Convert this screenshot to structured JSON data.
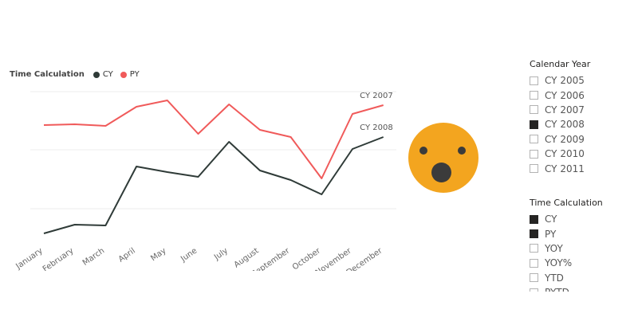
{
  "legend": {
    "title": "Time Calculation",
    "items": [
      {
        "label": "CY",
        "color": "#2f3b38"
      },
      {
        "label": "PY",
        "color": "#f05a5a"
      }
    ]
  },
  "chart_data": {
    "type": "line",
    "categories": [
      "January",
      "February",
      "March",
      "April",
      "May",
      "June",
      "July",
      "August",
      "September",
      "October",
      "November",
      "December"
    ],
    "series": [
      {
        "name": "CY",
        "end_label": "CY 2008",
        "color": "#2f3b38",
        "values": [
          15,
          26,
          25,
          99,
          92,
          86,
          130,
          94,
          82,
          64,
          121,
          136
        ]
      },
      {
        "name": "PY",
        "end_label": "CY 2007",
        "color": "#f05a5a",
        "values": [
          151,
          152,
          150,
          174,
          182,
          140,
          177,
          145,
          136,
          84,
          165,
          176
        ]
      }
    ],
    "ylim": [
      0,
      190
    ],
    "grid": true,
    "legend_position": "top-left"
  },
  "slicer_year": {
    "title": "Calendar Year",
    "items": [
      {
        "label": "CY 2005",
        "checked": false
      },
      {
        "label": "CY 2006",
        "checked": false
      },
      {
        "label": "CY 2007",
        "checked": false
      },
      {
        "label": "CY 2008",
        "checked": true
      },
      {
        "label": "CY 2009",
        "checked": false
      },
      {
        "label": "CY 2010",
        "checked": false
      },
      {
        "label": "CY 2011",
        "checked": false
      }
    ]
  },
  "slicer_time": {
    "title": "Time Calculation",
    "items": [
      {
        "label": "CY",
        "checked": true
      },
      {
        "label": "PY",
        "checked": true
      },
      {
        "label": "YOY",
        "checked": false
      },
      {
        "label": "YOY%",
        "checked": false
      },
      {
        "label": "YTD",
        "checked": false
      },
      {
        "label": "PYTD",
        "checked": false
      }
    ]
  },
  "emoji": {
    "icon": "surprised-face-emoji",
    "color": "#f3a51f"
  }
}
